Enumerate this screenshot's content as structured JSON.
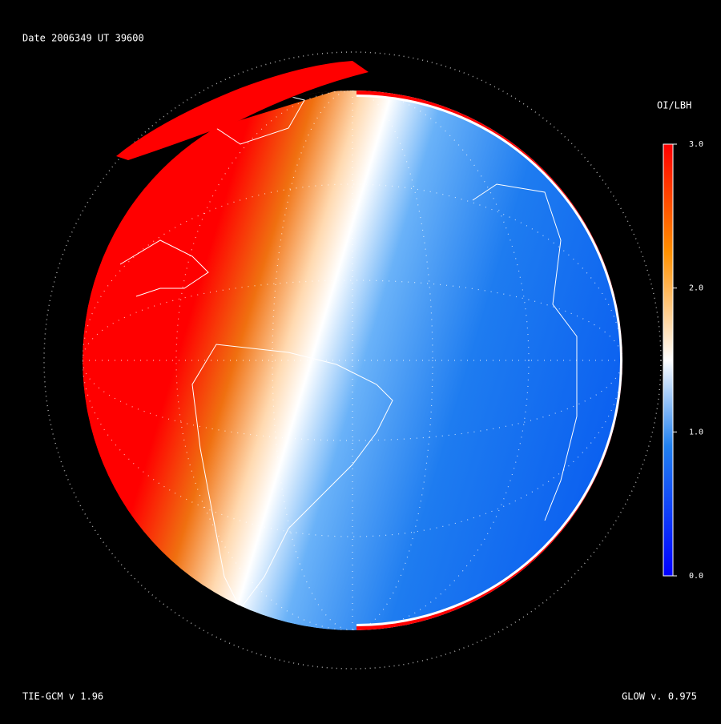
{
  "header": {
    "date_label": "Date 2006349  UT 39600"
  },
  "colorbar": {
    "title": "OI/LBH",
    "range": [
      0,
      3
    ],
    "ticks": [
      {
        "value": 3,
        "label": "3.0"
      },
      {
        "value": 2,
        "label": "2.0"
      },
      {
        "value": 1,
        "label": "1.0"
      },
      {
        "value": 0,
        "label": "0.0"
      }
    ]
  },
  "footer": {
    "left": "TIE-GCM v 1.96",
    "right": "GLOW v. 0.975"
  }
}
